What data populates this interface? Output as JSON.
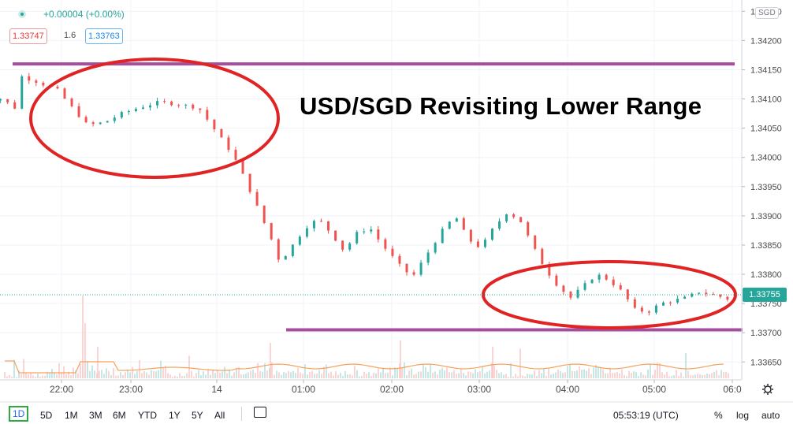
{
  "header": {
    "change_text": "+0.00004 (+0.00%)",
    "bid": "1.33747",
    "spread": "1.6",
    "ask": "1.33763"
  },
  "currency_label": "SGD",
  "title": "USD/SGD Revisiting Lower Range",
  "current_price": "1.33755",
  "chart_data": {
    "type": "candlestick",
    "title": "USD/SGD Revisiting Lower Range",
    "y_ticks": [
      "1.34250",
      "1.34200",
      "1.34150",
      "1.34100",
      "1.34050",
      "1.34000",
      "1.33950",
      "1.33900",
      "1.33850",
      "1.33800",
      "1.33750",
      "1.33700",
      "1.33650"
    ],
    "x_ticks": [
      "22:00",
      "23:00",
      "14",
      "01:00",
      "02:00",
      "03:00",
      "04:00",
      "05:00",
      "06:0"
    ],
    "ylim": [
      1.3362,
      1.3427
    ],
    "resistance_line": 1.3416,
    "support_line": 1.33705,
    "current_price": 1.33755,
    "price_path": [
      [
        0,
        1.34095
      ],
      [
        0.15,
        1.341
      ],
      [
        0.35,
        1.341
      ],
      [
        0.5,
        1.34085
      ],
      [
        0.55,
        1.3414
      ],
      [
        0.75,
        1.3413
      ],
      [
        1.0,
        1.34115
      ],
      [
        1.2,
        1.3408
      ],
      [
        1.35,
        1.34055
      ],
      [
        1.55,
        1.3406
      ],
      [
        1.75,
        1.34075
      ],
      [
        1.95,
        1.34085
      ],
      [
        2.2,
        1.34095
      ],
      [
        2.45,
        1.3409
      ],
      [
        2.65,
        1.34085
      ],
      [
        2.85,
        1.34045
      ],
      [
        3.05,
        1.34005
      ],
      [
        3.2,
        1.3396
      ],
      [
        3.35,
        1.3391
      ],
      [
        3.5,
        1.3386
      ],
      [
        3.6,
        1.3382
      ],
      [
        3.75,
        1.3385
      ],
      [
        3.9,
        1.3388
      ],
      [
        4.05,
        1.33895
      ],
      [
        4.2,
        1.3387
      ],
      [
        4.35,
        1.3384
      ],
      [
        4.5,
        1.3387
      ],
      [
        4.65,
        1.3388
      ],
      [
        4.8,
        1.3385
      ],
      [
        5.0,
        1.33815
      ],
      [
        5.15,
        1.33795
      ],
      [
        5.3,
        1.3383
      ],
      [
        5.5,
        1.33875
      ],
      [
        5.65,
        1.339
      ],
      [
        5.8,
        1.3386
      ],
      [
        5.95,
        1.33845
      ],
      [
        6.1,
        1.3388
      ],
      [
        6.25,
        1.33905
      ],
      [
        6.4,
        1.33895
      ],
      [
        6.55,
        1.3385
      ],
      [
        6.7,
        1.3381
      ],
      [
        6.85,
        1.3378
      ],
      [
        7.0,
        1.3376
      ],
      [
        7.15,
        1.3378
      ],
      [
        7.3,
        1.338
      ],
      [
        7.45,
        1.3379
      ],
      [
        7.6,
        1.3377
      ],
      [
        7.75,
        1.3374
      ],
      [
        7.9,
        1.33735
      ],
      [
        8.05,
        1.3375
      ],
      [
        8.2,
        1.33755
      ],
      [
        8.35,
        1.3376
      ],
      [
        8.5,
        1.3377
      ],
      [
        8.65,
        1.33765
      ],
      [
        8.8,
        1.3376
      ],
      [
        8.95,
        1.3375
      ],
      [
        9.1,
        1.33745
      ],
      [
        9.25,
        1.3375
      ],
      [
        9.4,
        1.3374
      ],
      [
        9.55,
        1.33735
      ],
      [
        9.7,
        1.33745
      ],
      [
        9.85,
        1.3374
      ],
      [
        10.0,
        1.33755
      ],
      [
        10.15,
        1.33745
      ],
      [
        10.3,
        1.3374
      ],
      [
        10.45,
        1.33735
      ],
      [
        10.6,
        1.3372
      ],
      [
        10.75,
        1.33745
      ],
      [
        10.9,
        1.33765
      ],
      [
        11.05,
        1.3376
      ],
      [
        11.2,
        1.33755
      ]
    ],
    "volume_profile": [
      0.2,
      0.1,
      0.15,
      0.1,
      0.4,
      0.1,
      0.15,
      0.1,
      0.7,
      0.2,
      0.1,
      0.15,
      0.2,
      0.1,
      0.15,
      0.1,
      0.2,
      0.15,
      0.3,
      0.2,
      0.35,
      0.25,
      0.15,
      0.4,
      0.2,
      0.3,
      0.2,
      0.35,
      0.25,
      0.4,
      0.3,
      0.2,
      0.35,
      0.25,
      0.3,
      0.4,
      0.3,
      0.45,
      0.3,
      0.25,
      0.35,
      0.3,
      0.25,
      0.35,
      0.2,
      0.3,
      0.25,
      0.2,
      0.15,
      0.25,
      0.2,
      0.3,
      0.25,
      0.2,
      0.3,
      0.25,
      0.2,
      0.35,
      0.2,
      0.25,
      0.3,
      0.2,
      0.25,
      0.3,
      0.2,
      0.35,
      0.4,
      0.3,
      0.25,
      0.2
    ]
  },
  "bottom_bar": {
    "ranges": [
      "1D",
      "5D",
      "1M",
      "3M",
      "6M",
      "YTD",
      "1Y",
      "5Y",
      "All"
    ],
    "time": "05:53:19 (UTC)",
    "percent": "%",
    "log": "log",
    "auto": "auto"
  }
}
